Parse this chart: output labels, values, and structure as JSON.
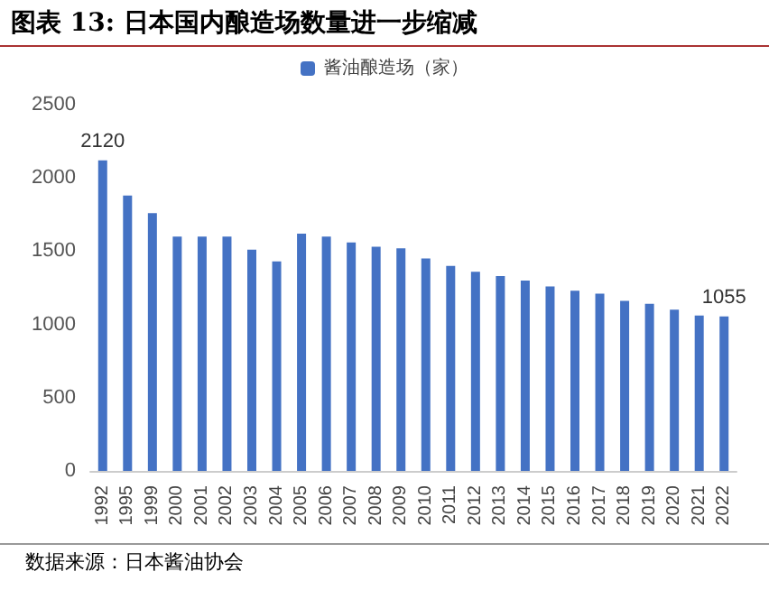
{
  "chart_data": {
    "type": "bar",
    "title": "图表 13:  日本国内酿造场数量进一步缩减",
    "categories": [
      "1992",
      "1995",
      "1999",
      "2000",
      "2001",
      "2002",
      "2003",
      "2004",
      "2005",
      "2006",
      "2007",
      "2008",
      "2009",
      "2010",
      "2011",
      "2012",
      "2013",
      "2014",
      "2015",
      "2016",
      "2017",
      "2018",
      "2019",
      "2020",
      "2021",
      "2022"
    ],
    "series": [
      {
        "name": "酱油酿造场（家）",
        "color": "#4472c4",
        "values": [
          2120,
          1880,
          1760,
          1600,
          1600,
          1600,
          1510,
          1430,
          1620,
          1600,
          1560,
          1530,
          1520,
          1450,
          1400,
          1360,
          1330,
          1300,
          1260,
          1230,
          1210,
          1160,
          1140,
          1100,
          1060,
          1055
        ],
        "value_labels": [
          "2120",
          null,
          null,
          null,
          null,
          null,
          null,
          null,
          null,
          null,
          null,
          null,
          null,
          null,
          null,
          null,
          null,
          null,
          null,
          null,
          null,
          null,
          null,
          null,
          null,
          "1055"
        ]
      }
    ],
    "ylim": [
      0,
      2500
    ],
    "yticks": [
      0,
      500,
      1000,
      1500,
      2000,
      2500
    ],
    "grid": false,
    "legend": "top",
    "annotations": [
      "数据来源：日本酱油协会"
    ]
  }
}
